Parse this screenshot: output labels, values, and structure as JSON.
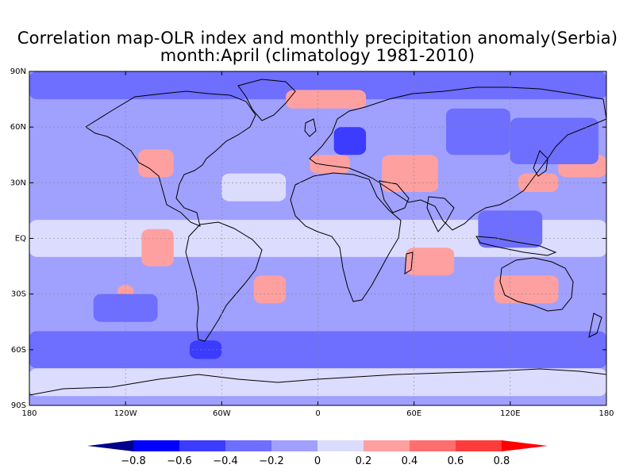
{
  "title": {
    "line1": "Correlation map-OLR index and monthly precipitation anomaly(Serbia)",
    "line2": "month:April (climatology 1981-2010)"
  },
  "map": {
    "lat_ticks": [
      "90N",
      "60N",
      "30N",
      "EQ",
      "30S",
      "60S",
      "90S"
    ],
    "lon_ticks": [
      "180",
      "120W",
      "60W",
      "0",
      "60E",
      "120E",
      "180"
    ],
    "lon_range": [
      -180,
      180
    ],
    "lat_range": [
      -90,
      90
    ],
    "grid": "dotted"
  },
  "colorbar": {
    "labels": [
      "-0.8",
      "-0.6",
      "-0.4",
      "-0.2",
      "0",
      "0.2",
      "0.4",
      "0.6",
      "0.8"
    ],
    "colors": [
      "#00008c",
      "#0000ff",
      "#3c3cff",
      "#6e6eff",
      "#a0a0ff",
      "#dcdcff",
      "#ffa0a0",
      "#ff6e6e",
      "#ff3c3c",
      "#ff0000"
    ]
  },
  "colors": {
    "background_field": "#a0a0ff",
    "coast": "#000000"
  },
  "regions": [
    {
      "level": "#6e6eff",
      "lon": [
        -180,
        180
      ],
      "lat": [
        75,
        90
      ]
    },
    {
      "level": "#dcdcff",
      "lon": [
        -180,
        180
      ],
      "lat": [
        -10,
        10
      ]
    },
    {
      "level": "#6e6eff",
      "lon": [
        -180,
        180
      ],
      "lat": [
        -70,
        -50
      ]
    },
    {
      "level": "#dcdcff",
      "lon": [
        -180,
        180
      ],
      "lat": [
        -85,
        -70
      ]
    },
    {
      "level": "#ffa0a0",
      "lon": [
        -112,
        -90
      ],
      "lat": [
        33,
        48
      ]
    },
    {
      "level": "#ffa0a0",
      "lon": [
        -5,
        20
      ],
      "lat": [
        35,
        45
      ]
    },
    {
      "level": "#3c3cff",
      "lon": [
        10,
        30
      ],
      "lat": [
        45,
        60
      ]
    },
    {
      "level": "#ffa0a0",
      "lon": [
        40,
        75
      ],
      "lat": [
        25,
        45
      ]
    },
    {
      "level": "#ffa0a0",
      "lon": [
        -110,
        -90
      ],
      "lat": [
        -15,
        5
      ]
    },
    {
      "level": "#ffa0a0",
      "lon": [
        55,
        85
      ],
      "lat": [
        -20,
        -5
      ]
    },
    {
      "level": "#ffa0a0",
      "lon": [
        110,
        150
      ],
      "lat": [
        -35,
        -20
      ]
    },
    {
      "level": "#ffa0a0",
      "lon": [
        150,
        180
      ],
      "lat": [
        33,
        45
      ]
    },
    {
      "level": "#ffa0a0",
      "lon": [
        -40,
        -20
      ],
      "lat": [
        -35,
        -20
      ]
    },
    {
      "level": "#ffa0a0",
      "lon": [
        -125,
        -115
      ],
      "lat": [
        -35,
        -25
      ]
    },
    {
      "level": "#6e6eff",
      "lon": [
        100,
        140
      ],
      "lat": [
        -5,
        15
      ]
    },
    {
      "level": "#6e6eff",
      "lon": [
        120,
        175
      ],
      "lat": [
        40,
        65
      ]
    },
    {
      "level": "#6e6eff",
      "lon": [
        -140,
        -100
      ],
      "lat": [
        -45,
        -30
      ]
    },
    {
      "level": "#3c3cff",
      "lon": [
        -80,
        -60
      ],
      "lat": [
        -65,
        -55
      ]
    },
    {
      "level": "#6e6eff",
      "lon": [
        80,
        120
      ],
      "lat": [
        45,
        70
      ]
    },
    {
      "level": "#dcdcff",
      "lon": [
        -60,
        -20
      ],
      "lat": [
        20,
        35
      ]
    },
    {
      "level": "#ffa0a0",
      "lon": [
        -20,
        30
      ],
      "lat": [
        70,
        80
      ]
    },
    {
      "level": "#ffa0a0",
      "lon": [
        125,
        150
      ],
      "lat": [
        25,
        35
      ]
    }
  ]
}
